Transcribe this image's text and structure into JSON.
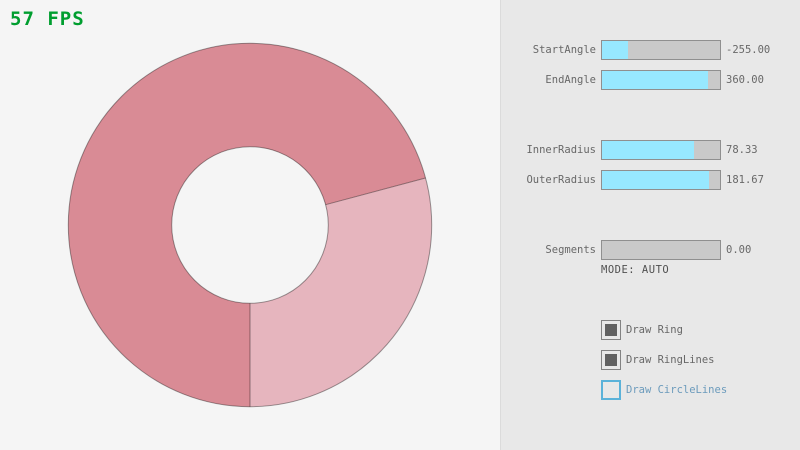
{
  "fps": {
    "text": "57 FPS"
  },
  "colors": {
    "fps_green": "#009e2f",
    "ring_dark": "#d98b95",
    "ring_light": "#e6b5be",
    "slider_fill": "#97e8ff",
    "slider_track": "#c9c9c9",
    "accent_blue": "#5bb2d9",
    "text_gray": "#686868",
    "text_focused_blue": "#6c9bbc",
    "mode_text": "#505050",
    "panel_bg": "#e8e8e8"
  },
  "panel": {
    "sliders": [
      {
        "name": "StartAngle",
        "value": "-255.00",
        "fill_percent": 21.7
      },
      {
        "name": "EndAngle",
        "value": "360.00",
        "fill_percent": 90.0
      },
      {
        "name": "InnerRadius",
        "value": "78.33",
        "fill_percent": 78.3
      },
      {
        "name": "OuterRadius",
        "value": "181.67",
        "fill_percent": 90.8
      },
      {
        "name": "Segments",
        "value": "0.00",
        "fill_percent": 0
      }
    ],
    "mode_text": "MODE: AUTO",
    "checkboxes": [
      {
        "label": "Draw Ring",
        "checked": true
      },
      {
        "label": "Draw RingLines",
        "checked": true
      },
      {
        "label": "Draw CircleLines",
        "checked": false
      }
    ]
  }
}
